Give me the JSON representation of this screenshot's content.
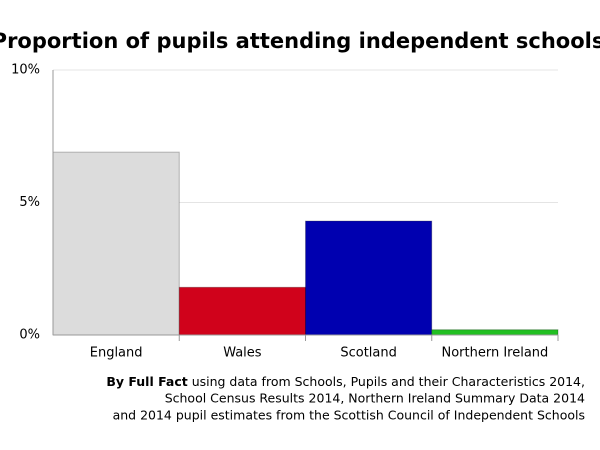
{
  "chart_data": {
    "type": "bar",
    "title": "Proportion of pupils attending independent schools",
    "categories": [
      "England",
      "Wales",
      "Scotland",
      "Northern Ireland"
    ],
    "values": [
      6.9,
      1.8,
      4.3,
      0.2
    ],
    "colors": [
      "#dcdcdc",
      "#d0021b",
      "#0000b0",
      "#22c022"
    ],
    "ylim": [
      0,
      10
    ],
    "yticks": [
      {
        "value": 0,
        "label": "0%"
      },
      {
        "value": 5,
        "label": "5%"
      },
      {
        "value": 10,
        "label": "10%"
      }
    ],
    "grid": true
  },
  "source": {
    "author": "By Full Fact",
    "lines": [
      "using data from Schools, Pupils and their Characteristics 2014,",
      "School Census Results 2014, Northern Ireland Summary Data 2014",
      "and 2014 pupil estimates from the Scottish Council of Independent Schools"
    ]
  }
}
